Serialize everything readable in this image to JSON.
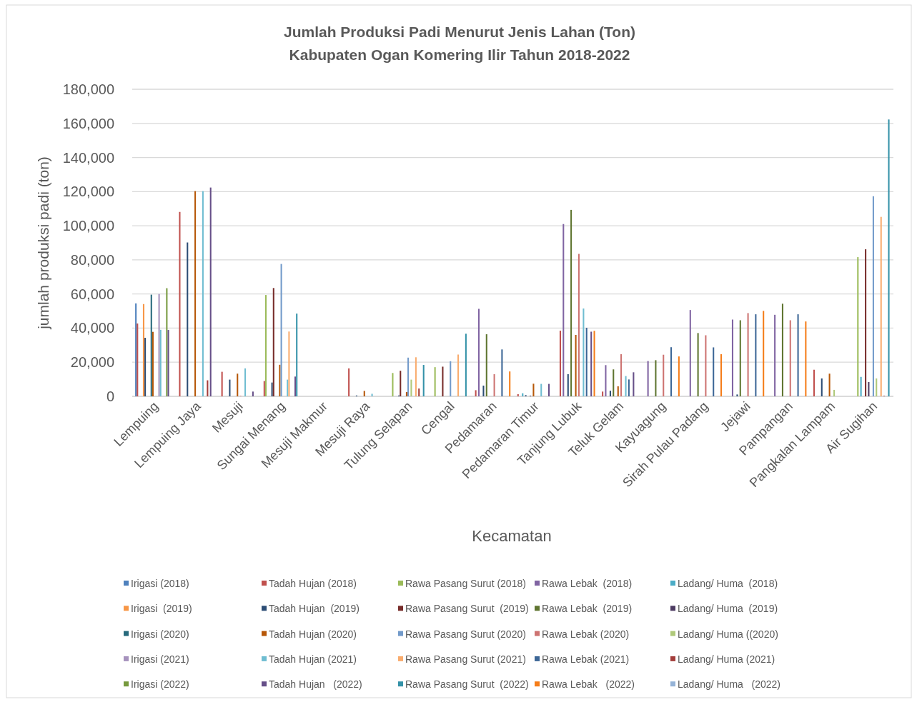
{
  "chart_data": {
    "type": "bar",
    "title": "Jumlah Produksi Padi Menurut Jenis Lahan (Ton)\nKabupaten Ogan Komering Ilir Tahun 2018-2022",
    "xlabel": "Kecamatan",
    "ylabel": "jumlah produksi padi (ton)",
    "categories": [
      "Lempuing",
      "Lempuing Jaya",
      "Mesuji",
      "Sungai Menang",
      "Mesuji Makmur",
      "Mesuji Raya",
      "Tulung Selapan",
      "Cengal",
      "Pedamaran",
      "Pedamaran Timur",
      "Tanjung Lubuk",
      "Teluk Gelam",
      "Kayuagung",
      "Sirah Pulau Padang",
      "Jejawi",
      "Pampangan",
      "Pangkalan Lampam",
      "Air Sugihan"
    ],
    "ylim": [
      0,
      180000
    ],
    "yticks": [
      0,
      {
        "value": 20000,
        "label": "20,000"
      },
      {
        "value": 40000,
        "label": "40,000"
      },
      {
        "value": 60000,
        "label": "60,000"
      },
      {
        "value": 80000,
        "label": "80,000"
      },
      {
        "value": 100000,
        "label": "100,000"
      },
      {
        "value": 120000,
        "label": "120,000"
      },
      {
        "value": 140000,
        "label": "140,000"
      },
      {
        "value": 160000,
        "label": "160,000"
      },
      {
        "value": 180000,
        "label": "180,000"
      }
    ],
    "grid": "y",
    "legend": "bottom",
    "series": [
      {
        "name": "Irigasi (2018)",
        "color": "#4f81bd",
        "values": [
          54500,
          0,
          0,
          0,
          0,
          0,
          0,
          0,
          0,
          0,
          0,
          0,
          0,
          0,
          0,
          0,
          0,
          0
        ]
      },
      {
        "name": "Tadah Hujan (2018)",
        "color": "#c0504d",
        "values": [
          42700,
          108100,
          14400,
          9000,
          0,
          16400,
          0,
          0,
          3600,
          1300,
          38500,
          2800,
          0,
          0,
          0,
          0,
          15600,
          0
        ]
      },
      {
        "name": "Rawa Pasang Surut (2018)",
        "color": "#9bbb59",
        "values": [
          0,
          0,
          0,
          59400,
          0,
          0,
          13700,
          17100,
          0,
          0,
          0,
          0,
          0,
          0,
          0,
          0,
          0,
          81600
        ]
      },
      {
        "name": "Rawa Lebak  (2018)",
        "color": "#8064a2",
        "values": [
          0,
          0,
          0,
          0,
          0,
          0,
          0,
          0,
          51300,
          0,
          101000,
          18300,
          20700,
          50600,
          45000,
          47800,
          0,
          0
        ]
      },
      {
        "name": "Ladang/ Huma  (2018)",
        "color": "#4bacc6",
        "values": [
          0,
          0,
          0,
          0,
          0,
          0,
          0,
          0,
          0,
          1800,
          0,
          0,
          0,
          0,
          0,
          0,
          0,
          11400
        ]
      },
      {
        "name": "Irigasi  (2019)",
        "color": "#f79646",
        "values": [
          54100,
          0,
          0,
          0,
          0,
          0,
          0,
          0,
          0,
          0,
          0,
          0,
          0,
          0,
          0,
          0,
          0,
          0
        ]
      },
      {
        "name": "Tadah Hujan  (2019)",
        "color": "#2c4d75",
        "values": [
          34300,
          90200,
          9800,
          8100,
          0,
          500,
          500,
          0,
          6300,
          700,
          13000,
          3300,
          0,
          0,
          1100,
          0,
          10500,
          0
        ]
      },
      {
        "name": "Rawa Pasang Surut  (2019)",
        "color": "#772c2a",
        "values": [
          0,
          0,
          0,
          63500,
          0,
          0,
          15000,
          17400,
          0,
          0,
          0,
          0,
          0,
          0,
          0,
          0,
          0,
          86200
        ]
      },
      {
        "name": "Rawa Lebak  (2019)",
        "color": "#5f7530",
        "values": [
          0,
          0,
          0,
          0,
          0,
          0,
          0,
          0,
          36400,
          0,
          109300,
          15800,
          21200,
          37100,
          44600,
          54300,
          0,
          0
        ]
      },
      {
        "name": "Ladang/ Huma  (2019)",
        "color": "#4d3b62",
        "values": [
          0,
          0,
          0,
          0,
          0,
          0,
          0,
          0,
          0,
          400,
          0,
          0,
          0,
          0,
          0,
          0,
          0,
          8400
        ]
      },
      {
        "name": "Irigasi (2020)",
        "color": "#276a7c",
        "values": [
          59600,
          0,
          0,
          0,
          0,
          0,
          0,
          0,
          0,
          0,
          0,
          0,
          0,
          0,
          0,
          0,
          0,
          0
        ]
      },
      {
        "name": "Tadah Hujan (2020)",
        "color": "#b65708",
        "values": [
          37800,
          120300,
          13300,
          18500,
          0,
          3200,
          2500,
          0,
          0,
          7400,
          36000,
          5900,
          0,
          0,
          0,
          0,
          13300,
          0
        ]
      },
      {
        "name": "Rawa Pasang Surut (2020)",
        "color": "#729aca",
        "values": [
          0,
          0,
          0,
          77600,
          0,
          0,
          22700,
          20600,
          0,
          0,
          0,
          0,
          0,
          0,
          0,
          0,
          0,
          117300
        ]
      },
      {
        "name": "Rawa Lebak (2020)",
        "color": "#cd7371",
        "values": [
          0,
          0,
          300,
          0,
          0,
          0,
          0,
          0,
          13000,
          0,
          83500,
          24700,
          24400,
          35800,
          48800,
          44600,
          0,
          0
        ]
      },
      {
        "name": "Ladang/ Huma ((2020)",
        "color": "#afc97a",
        "values": [
          0,
          0,
          0,
          0,
          0,
          0,
          9800,
          0,
          0,
          0,
          0,
          0,
          0,
          0,
          0,
          0,
          3800,
          10500
        ]
      },
      {
        "name": "Irigasi (2021)",
        "color": "#a692bd",
        "values": [
          60000,
          0,
          0,
          0,
          0,
          0,
          0,
          0,
          0,
          0,
          0,
          0,
          0,
          0,
          0,
          0,
          0,
          0
        ]
      },
      {
        "name": "Tadah Hujan (2021)",
        "color": "#6fbdd1",
        "values": [
          39000,
          120300,
          16400,
          9800,
          0,
          1500,
          0,
          0,
          0,
          7300,
          51500,
          11900,
          0,
          0,
          0,
          0,
          0,
          0
        ]
      },
      {
        "name": "Rawa Pasang Surut (2021)",
        "color": "#f9ac6e",
        "values": [
          0,
          0,
          0,
          38000,
          0,
          0,
          22900,
          24500,
          0,
          0,
          0,
          0,
          0,
          0,
          0,
          0,
          0,
          105200
        ]
      },
      {
        "name": "Rawa Lebak (2021)",
        "color": "#3c6696",
        "values": [
          0,
          0,
          0,
          0,
          0,
          0,
          0,
          0,
          27500,
          0,
          40200,
          9900,
          28800,
          28700,
          48100,
          48100,
          0,
          0
        ]
      },
      {
        "name": "Ladang/ Huma (2021)",
        "color": "#a33d3a",
        "values": [
          0,
          9400,
          0,
          0,
          0,
          0,
          4600,
          0,
          0,
          0,
          0,
          0,
          0,
          0,
          0,
          0,
          0,
          300
        ]
      },
      {
        "name": "Irigasi (2022)",
        "color": "#779a3e",
        "values": [
          63400,
          0,
          0,
          0,
          0,
          0,
          0,
          0,
          0,
          0,
          0,
          0,
          0,
          0,
          0,
          0,
          0,
          0
        ]
      },
      {
        "name": "Tadah Hujan   (2022)",
        "color": "#664f88",
        "values": [
          38900,
          122400,
          2800,
          11600,
          0,
          0,
          0,
          0,
          0,
          7300,
          37900,
          14100,
          0,
          0,
          0,
          0,
          0,
          0
        ]
      },
      {
        "name": "Rawa Pasang Surut  (2022)",
        "color": "#3492a8",
        "values": [
          0,
          0,
          0,
          48500,
          0,
          0,
          18400,
          36700,
          0,
          0,
          0,
          0,
          0,
          0,
          0,
          0,
          0,
          162300
        ]
      },
      {
        "name": "Rawa Lebak   (2022)",
        "color": "#f57d19",
        "values": [
          0,
          0,
          0,
          0,
          0,
          0,
          0,
          0,
          14600,
          0,
          38400,
          0,
          23400,
          24700,
          50100,
          43900,
          0,
          0
        ]
      },
      {
        "name": "Ladang/ Huma   (2022)",
        "color": "#95b3d7",
        "values": [
          0,
          0,
          0,
          0,
          0,
          0,
          0,
          0,
          0,
          0,
          0,
          0,
          0,
          0,
          0,
          0,
          0,
          0
        ]
      }
    ]
  }
}
